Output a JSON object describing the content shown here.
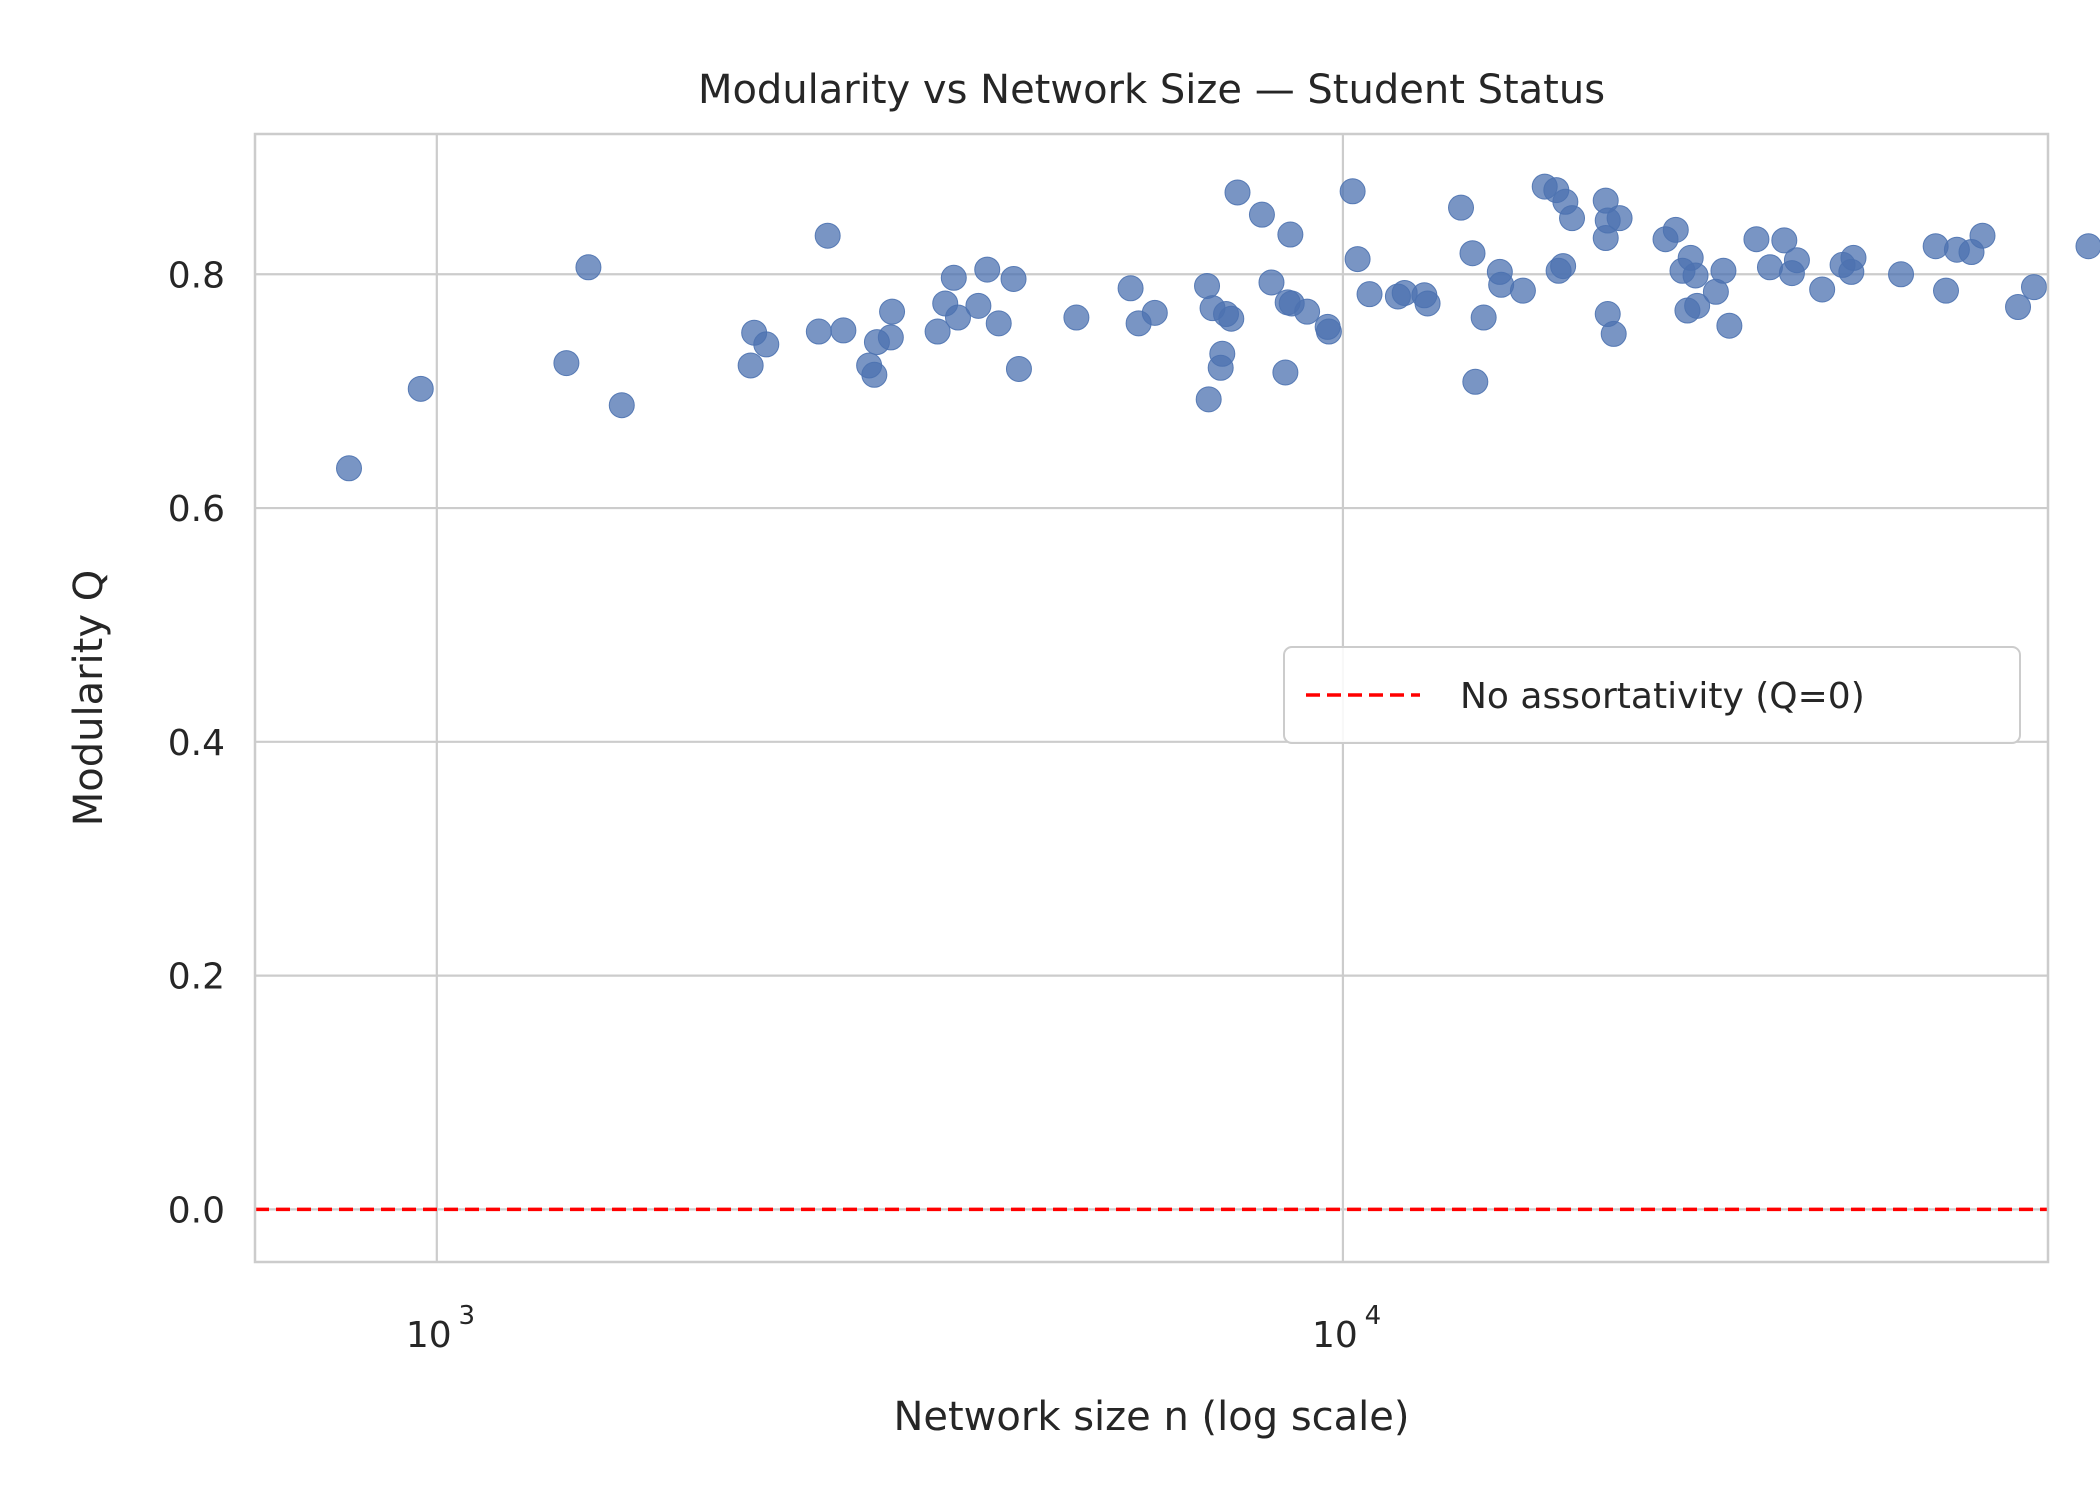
{
  "chart_data": {
    "type": "scatter",
    "title": "Modularity vs Network Size — Student Status",
    "xlabel": "Network size n (log scale)",
    "ylabel": "Modularity Q",
    "xscale": "log",
    "xlim": [
      630,
      60000
    ],
    "ylim": [
      -0.045,
      0.92
    ],
    "xticks": [
      {
        "value": 1000,
        "base": "10",
        "exp": "3"
      },
      {
        "value": 10000,
        "base": "10",
        "exp": "4"
      }
    ],
    "yticks": [
      {
        "value": 0.0,
        "label": "0.0"
      },
      {
        "value": 0.2,
        "label": "0.2"
      },
      {
        "value": 0.4,
        "label": "0.4"
      },
      {
        "value": 0.6,
        "label": "0.6"
      },
      {
        "value": 0.8,
        "label": "0.8"
      }
    ],
    "grid": true,
    "legend": {
      "position": "center-right",
      "entries": [
        {
          "label": "No assortativity (Q=0)",
          "style": "dashed",
          "color": "#ff0000"
        }
      ]
    },
    "reference_line": {
      "y": 0.0,
      "color": "#ff0000",
      "style": "dashed"
    },
    "series": [
      {
        "color": "#4c72b0",
        "points": [
          [
            800,
            0.634
          ],
          [
            960,
            0.702
          ],
          [
            1390,
            0.724
          ],
          [
            1470,
            0.806
          ],
          [
            1600,
            0.688
          ],
          [
            2220,
            0.722
          ],
          [
            2240,
            0.75
          ],
          [
            2310,
            0.74
          ],
          [
            2640,
            0.751
          ],
          [
            2700,
            0.833
          ],
          [
            2810,
            0.752
          ],
          [
            3000,
            0.722
          ],
          [
            3040,
            0.714
          ],
          [
            3060,
            0.742
          ],
          [
            3170,
            0.746
          ],
          [
            3180,
            0.768
          ],
          [
            3570,
            0.751
          ],
          [
            3640,
            0.775
          ],
          [
            3720,
            0.797
          ],
          [
            3760,
            0.763
          ],
          [
            3960,
            0.773
          ],
          [
            4050,
            0.804
          ],
          [
            4170,
            0.758
          ],
          [
            4330,
            0.796
          ],
          [
            4390,
            0.719
          ],
          [
            5080,
            0.763
          ],
          [
            5830,
            0.788
          ],
          [
            5950,
            0.758
          ],
          [
            6200,
            0.767
          ],
          [
            7080,
            0.79
          ],
          [
            7180,
            0.771
          ],
          [
            7330,
            0.72
          ],
          [
            7360,
            0.732
          ],
          [
            7430,
            0.766
          ],
          [
            7530,
            0.762
          ],
          [
            7650,
            0.87
          ],
          [
            7110,
            0.693
          ],
          [
            8140,
            0.851
          ],
          [
            8340,
            0.793
          ],
          [
            8640,
            0.716
          ],
          [
            8690,
            0.776
          ],
          [
            8750,
            0.834
          ],
          [
            8780,
            0.775
          ],
          [
            9130,
            0.768
          ],
          [
            9620,
            0.755
          ],
          [
            9650,
            0.751
          ],
          [
            10250,
            0.871
          ],
          [
            10380,
            0.813
          ],
          [
            10700,
            0.783
          ],
          [
            11500,
            0.781
          ],
          [
            11700,
            0.784
          ],
          [
            12300,
            0.782
          ],
          [
            12400,
            0.775
          ],
          [
            13500,
            0.857
          ],
          [
            13900,
            0.818
          ],
          [
            14000,
            0.708
          ],
          [
            14300,
            0.763
          ],
          [
            14900,
            0.802
          ],
          [
            14950,
            0.791
          ],
          [
            15800,
            0.786
          ],
          [
            16700,
            0.875
          ],
          [
            17200,
            0.872
          ],
          [
            17300,
            0.803
          ],
          [
            17500,
            0.807
          ],
          [
            17600,
            0.862
          ],
          [
            17900,
            0.848
          ],
          [
            19500,
            0.863
          ],
          [
            19500,
            0.831
          ],
          [
            19600,
            0.846
          ],
          [
            19600,
            0.766
          ],
          [
            19900,
            0.749
          ],
          [
            20200,
            0.848
          ],
          [
            22700,
            0.83
          ],
          [
            23300,
            0.838
          ],
          [
            23700,
            0.803
          ],
          [
            24000,
            0.769
          ],
          [
            24200,
            0.814
          ],
          [
            24500,
            0.799
          ],
          [
            24600,
            0.773
          ],
          [
            25800,
            0.785
          ],
          [
            26300,
            0.803
          ],
          [
            26700,
            0.756
          ],
          [
            28600,
            0.83
          ],
          [
            29600,
            0.806
          ],
          [
            30700,
            0.829
          ],
          [
            31300,
            0.801
          ],
          [
            31700,
            0.812
          ],
          [
            33800,
            0.787
          ],
          [
            35600,
            0.808
          ],
          [
            36400,
            0.802
          ],
          [
            36600,
            0.814
          ],
          [
            41300,
            0.8
          ],
          [
            45100,
            0.824
          ],
          [
            46300,
            0.786
          ],
          [
            47600,
            0.821
          ],
          [
            49400,
            0.819
          ],
          [
            50800,
            0.833
          ],
          [
            55600,
            0.772
          ],
          [
            57900,
            0.789
          ],
          [
            66500,
            0.824
          ]
        ]
      }
    ]
  }
}
